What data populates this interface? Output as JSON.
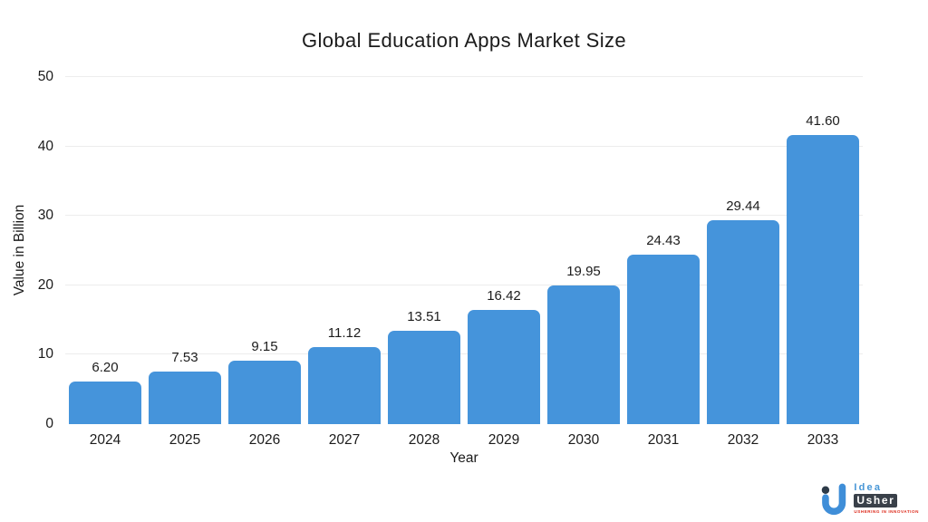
{
  "chart_data": {
    "type": "bar",
    "title": "Global Education Apps Market Size",
    "xlabel": "Year",
    "ylabel": "Value in Billion",
    "categories": [
      "2024",
      "2025",
      "2026",
      "2027",
      "2028",
      "2029",
      "2030",
      "2031",
      "2032",
      "2033"
    ],
    "values": [
      6.2,
      7.53,
      9.15,
      11.12,
      13.51,
      16.42,
      19.95,
      24.43,
      29.44,
      41.6
    ],
    "value_labels": [
      "6.20",
      "7.53",
      "9.15",
      "11.12",
      "13.51",
      "16.42",
      "19.95",
      "24.43",
      "29.44",
      "41.60"
    ],
    "ylim": [
      0,
      50
    ],
    "yticks": [
      0,
      10,
      20,
      30,
      40,
      50
    ],
    "grid": true,
    "legend": "none",
    "bar_color": "#4594DB",
    "gridline_color": "#ededed",
    "text_color": "#1b1b1b"
  },
  "branding": {
    "name_top": "Idea",
    "name_bottom": "Usher",
    "tagline": "USHERING IN INNOVATION",
    "mark_blue": "#3f8ed8",
    "dot_color": "#2d3a48"
  }
}
